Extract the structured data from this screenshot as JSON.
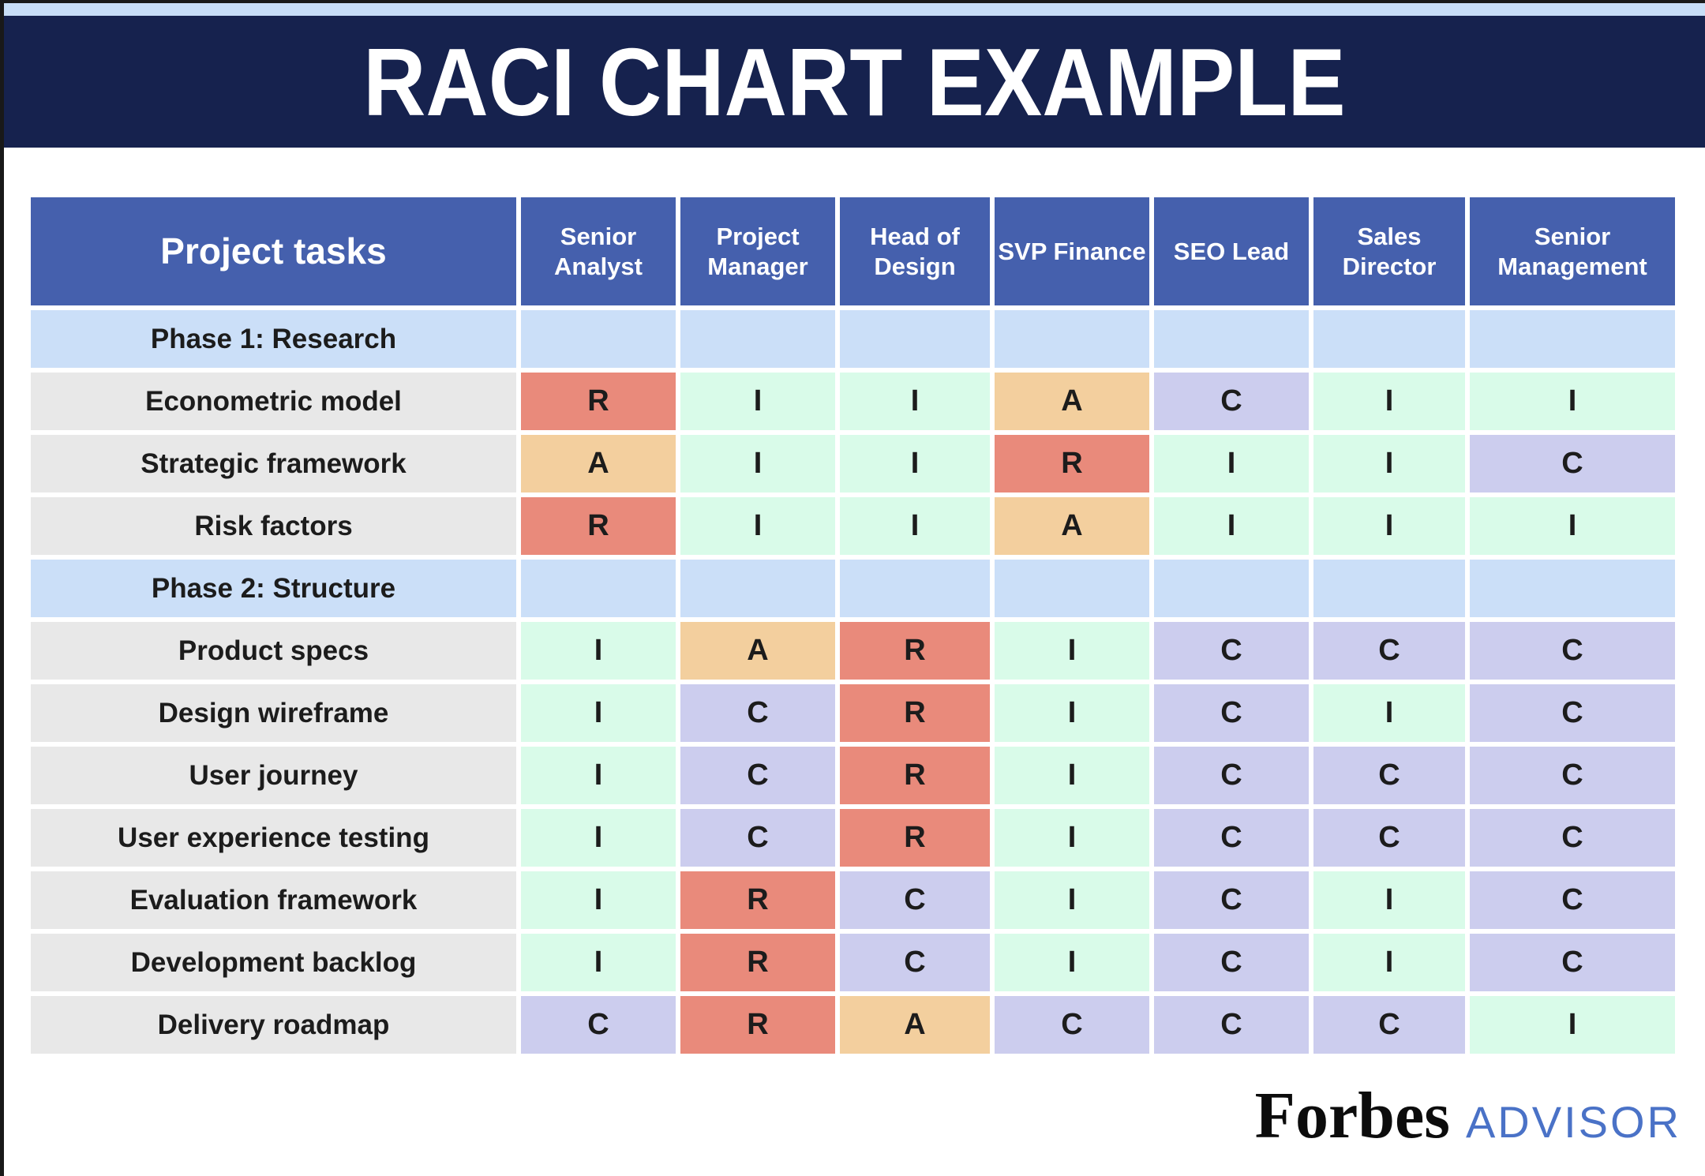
{
  "banner": {
    "title": "RACI CHART EXAMPLE"
  },
  "footer": {
    "brand": "Forbes",
    "suffix": "ADVISOR"
  },
  "colors": {
    "top_strip": "#c8def7",
    "banner_bg": "#16224e",
    "header_bg": "#4560ad",
    "phase_row_bg": "#cbdff8",
    "task_label_bg": "#e8e8e8",
    "advisor_text": "#4a72c7"
  },
  "chart_data": {
    "type": "table",
    "title": "RACI CHART EXAMPLE",
    "row_header": "Project tasks",
    "columns": [
      "Senior Analyst",
      "Project Manager",
      "Head of Design",
      "SVP Finance",
      "SEO Lead",
      "Sales Director",
      "Senior Management"
    ],
    "legend": {
      "R": "#e98a7b",
      "A": "#f3cf9e",
      "C": "#cccdee",
      "I": "#d9fbe9"
    },
    "rows": [
      {
        "type": "phase",
        "label": "Phase 1: Research",
        "cells": []
      },
      {
        "type": "task",
        "label": "Econometric model",
        "cells": [
          "R",
          "I",
          "I",
          "A",
          "C",
          "I",
          "I"
        ]
      },
      {
        "type": "task",
        "label": "Strategic framework",
        "cells": [
          "A",
          "I",
          "I",
          "R",
          "I",
          "I",
          "C"
        ]
      },
      {
        "type": "task",
        "label": "Risk factors",
        "cells": [
          "R",
          "I",
          "I",
          "A",
          "I",
          "I",
          "I"
        ]
      },
      {
        "type": "phase",
        "label": "Phase 2: Structure",
        "cells": []
      },
      {
        "type": "task",
        "label": "Product specs",
        "cells": [
          "I",
          "A",
          "R",
          "I",
          "C",
          "C",
          "C"
        ]
      },
      {
        "type": "task",
        "label": "Design wireframe",
        "cells": [
          "I",
          "C",
          "R",
          "I",
          "C",
          "I",
          "C"
        ]
      },
      {
        "type": "task",
        "label": "User journey",
        "cells": [
          "I",
          "C",
          "R",
          "I",
          "C",
          "C",
          "C"
        ]
      },
      {
        "type": "task",
        "label": "User experience testing",
        "cells": [
          "I",
          "C",
          "R",
          "I",
          "C",
          "C",
          "C"
        ]
      },
      {
        "type": "task",
        "label": "Evaluation framework",
        "cells": [
          "I",
          "R",
          "C",
          "I",
          "C",
          "I",
          "C"
        ]
      },
      {
        "type": "task",
        "label": "Development backlog",
        "cells": [
          "I",
          "R",
          "C",
          "I",
          "C",
          "I",
          "C"
        ]
      },
      {
        "type": "task",
        "label": "Delivery roadmap",
        "cells": [
          "C",
          "R",
          "A",
          "C",
          "C",
          "C",
          "I"
        ]
      }
    ]
  }
}
